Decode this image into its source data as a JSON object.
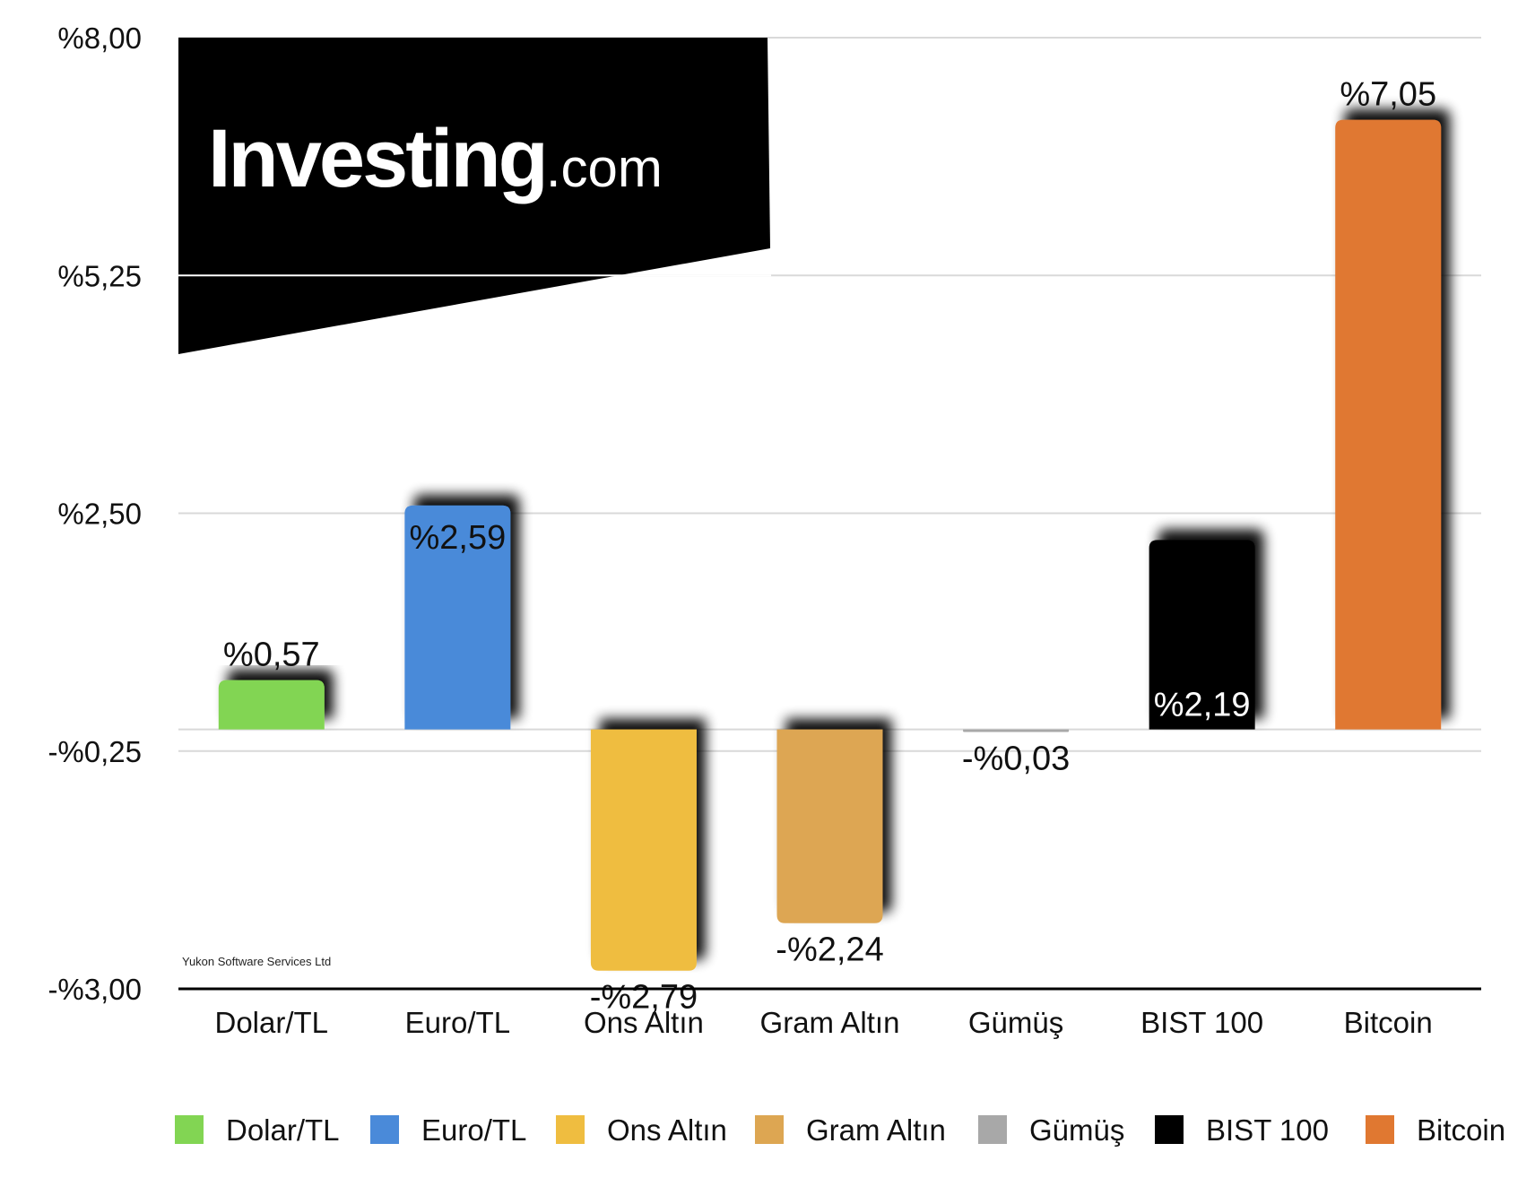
{
  "logo": {
    "word": "Investing",
    "suffix": ".com"
  },
  "credit": "Yukon Software Services Ltd",
  "chart_data": {
    "type": "bar",
    "categories": [
      "Dolar/TL",
      "Euro/TL",
      "Ons Altın",
      "Gram Altın",
      "Gümüş",
      "BIST 100",
      "Bitcoin"
    ],
    "values": [
      0.57,
      2.59,
      -2.79,
      -2.24,
      -0.03,
      2.19,
      7.05
    ],
    "value_labels": [
      "%0,57",
      "%2,59",
      "-%2,79",
      "-%2,24",
      "-%0,03",
      "%2,19",
      "%7,05"
    ],
    "colors": [
      "#82d553",
      "#4a8ad9",
      "#efbd40",
      "#dda652",
      "#a8a8a8",
      "#000000",
      "#e07831"
    ],
    "ylim": [
      -3.0,
      8.0
    ],
    "yticks": [
      8.0,
      5.25,
      2.5,
      -0.25,
      -3.0
    ],
    "ytick_labels": [
      "%8,00",
      "%5,25",
      "%2,50",
      "-%0,25",
      "-%3,00"
    ],
    "grid": true,
    "legend": {
      "position": "bottom",
      "entries": [
        "Dolar/TL",
        "Euro/TL",
        "Ons Altın",
        "Gram Altın",
        "Gümüş",
        "BIST 100",
        "Bitcoin"
      ]
    },
    "title": "",
    "xlabel": "",
    "ylabel": ""
  }
}
